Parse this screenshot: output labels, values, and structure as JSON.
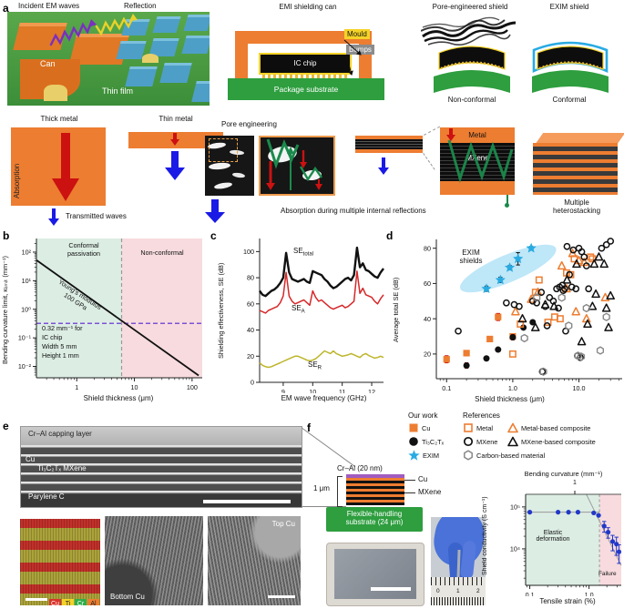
{
  "panels": {
    "a": "a",
    "b": "b",
    "c": "c",
    "d": "d",
    "e": "e",
    "f": "f"
  },
  "colors": {
    "metal_orange": "#ED7D31",
    "substrate_green": "#2E9E3F",
    "mould_yellow": "#F5D327",
    "bumps_gray": "#8C8C8C",
    "exim_cyan": "#29ABE2",
    "wave_red": "#CC1111",
    "wave_blue": "#1A1AE6",
    "absorption_green": "#1B8A4C",
    "capping_purple": "#A05CC0",
    "region_green": "#DCEDE4",
    "region_pink": "#F7DBDE"
  },
  "panel_a": {
    "scene": {
      "incident_label": "Incident EM waves",
      "reflection_label": "Reflection",
      "can_label": "Can",
      "thin_film_label": "Thin film"
    },
    "can_diagram": {
      "title": "EMI shielding can",
      "mould_label": "Mould",
      "bumps_label": "Bumps",
      "chip_label": "IC chip",
      "substrate_label": "Package substrate"
    },
    "pore_shield": {
      "title": "Pore-engineered shield",
      "caption": "Non-conformal"
    },
    "exim_shield": {
      "title": "EXIM shield",
      "caption": "Conformal"
    },
    "mechanisms": {
      "thick_metal_title": "Thick metal",
      "thin_metal_title": "Thin metal",
      "absorption_label": "Absorption",
      "transmitted_label": "Transmitted waves",
      "pore_engineering_title": "Pore engineering",
      "internal_reflection_label": "Absorption during multiple internal reflections",
      "metal_label": "Metal",
      "mxene_label": "MXene",
      "heterostacking_label_1": "Multiple",
      "heterostacking_label_2": "heterostacking"
    }
  },
  "legend": {
    "our_work_header": "Our work",
    "references_header": "References",
    "cu": "Cu",
    "mxene_ours": "Ti₃C₂Tₓ",
    "exim": "EXIM",
    "metal": "Metal",
    "mxene_ref": "MXene",
    "carbon": "Carbon-based material",
    "metal_composite": "Metal-based composite",
    "mxene_composite": "MXene-based composite"
  },
  "panel_e": {
    "sem_labels": {
      "capping": "Cr–Al capping layer",
      "cu": "Cu",
      "mxene": "Ti₃C₂Tₓ MXene",
      "substrate": "Parylene C"
    },
    "eds_elements": [
      {
        "symbol": "Cu"
      },
      {
        "symbol": "Ti"
      },
      {
        "symbol": "Cr"
      },
      {
        "symbol": "Al"
      }
    ],
    "tem1_label": "Bottom Cu",
    "tem2_label": "Top Cu"
  },
  "panel_f": {
    "stack": {
      "capping": "Cr–Al (20 nm)",
      "thickness": "1 μm",
      "cu": "Cu",
      "mxene": "MXene",
      "substrate_line1": "Flexible-handling",
      "substrate_line2": "substrate (24 μm)"
    },
    "ruler_numbers": [
      "0",
      "1",
      "2"
    ]
  },
  "chart_data": [
    {
      "id": "b",
      "type": "line",
      "log_x": true,
      "log_y": true,
      "xlim": [
        0.2,
        150
      ],
      "ylim": [
        0.004,
        300
      ],
      "x_ticks": [
        1,
        10,
        100
      ],
      "x_tick_labels": [
        "1",
        "10",
        "100"
      ],
      "y_ticks": [
        0.01,
        0.1,
        1,
        10,
        100
      ],
      "y_tick_labels": [
        "10⁻²",
        "10⁻¹",
        "10⁰",
        "10¹",
        "10²"
      ],
      "xlabel": "Shield thickness (μm)",
      "ylabel": "Bending curvature limit, κₗᵢₘᵢₜ (mm⁻¹)",
      "regions": [
        {
          "x0": 0.2,
          "x1": 6,
          "color": "#DCEDE4"
        },
        {
          "x0": 6,
          "x1": 150,
          "color": "#F7DBDE"
        }
      ],
      "boundary_x": 6,
      "region_left_label_1": "Conformal",
      "region_left_label_2": "passivation",
      "region_right_label": "Non-conformal",
      "line": {
        "points": [
          [
            0.2,
            52.5
          ],
          [
            130,
            0.0048
          ]
        ],
        "color": "#111111"
      },
      "line_label_1": "Young's modulus",
      "line_label_2": "100 GPa",
      "hline": {
        "y": 0.32,
        "color": "#7B52D6"
      },
      "note_lines": [
        "0.32 mm⁻¹ for",
        "IC chip",
        "Width 5 mm",
        "Height 1 mm"
      ]
    },
    {
      "id": "c",
      "type": "line",
      "x_start": 8.2,
      "x_step": 0.1,
      "xlim": [
        8.2,
        12.4
      ],
      "ylim": [
        0,
        110
      ],
      "x_ticks": [
        9,
        10,
        11,
        12
      ],
      "x_tick_labels": [
        "9",
        "10",
        "11",
        "12"
      ],
      "y_ticks": [
        0,
        20,
        40,
        60,
        80,
        100
      ],
      "y_tick_labels": [
        "0",
        "20",
        "40",
        "60",
        "80",
        "100"
      ],
      "xlabel": "EM wave frequency (GHz)",
      "ylabel": "Shielding effectiveness, SE (dB)",
      "series": [
        {
          "label_main": "SE",
          "label_sub": "total",
          "color": "#111111",
          "width": 2.4,
          "values": [
            70,
            67,
            66,
            68,
            70,
            71,
            73,
            76,
            80,
            99,
            84,
            79,
            78,
            77,
            78,
            79,
            77,
            76,
            85,
            84,
            83,
            82,
            79,
            77,
            74,
            72,
            73,
            75,
            77,
            79,
            80,
            78,
            82,
            103,
            88,
            91,
            86,
            85,
            83,
            81,
            80,
            84,
            87
          ]
        },
        {
          "label_main": "SE",
          "label_sub": "A",
          "color": "#D62728",
          "width": 1.5,
          "values": [
            55,
            54,
            53,
            55,
            56,
            57,
            58,
            61,
            66,
            84,
            66,
            62,
            60,
            61,
            62,
            63,
            61,
            59,
            70,
            65,
            62,
            63,
            61,
            59,
            57,
            56,
            57,
            58,
            59,
            57,
            58,
            60,
            62,
            85,
            68,
            72,
            67,
            66,
            65,
            62,
            60,
            64,
            67
          ]
        },
        {
          "label_main": "SE",
          "label_sub": "R",
          "color": "#BDB52A",
          "width": 1.5,
          "values": [
            15,
            13,
            12,
            11.5,
            12,
            13,
            14,
            15,
            16,
            17,
            18,
            19,
            20,
            20,
            19,
            18,
            17,
            16.5,
            17,
            18,
            20,
            22,
            24,
            23,
            22,
            24,
            22,
            21,
            20,
            20.5,
            21,
            22,
            21,
            20,
            19,
            21,
            22,
            20.5,
            19.5,
            18.5,
            19,
            20,
            19
          ]
        }
      ]
    },
    {
      "id": "d",
      "type": "scatter",
      "log_x": true,
      "xlim": [
        0.07,
        45
      ],
      "ylim": [
        6,
        85
      ],
      "x_ticks": [
        0.1,
        1,
        10
      ],
      "x_tick_labels": [
        "0.1",
        "1.0",
        "10.0"
      ],
      "y_ticks": [
        20,
        40,
        60,
        80
      ],
      "y_tick_labels": [
        "20",
        "40",
        "60",
        "80"
      ],
      "xlabel": "Shield thickness (μm)",
      "ylabel": "Average total SE (dB)",
      "highlight": {
        "label_1": "EXIM",
        "label_2": "shields",
        "color": "#A8DFF5",
        "cx": 0.85,
        "cy": 68.5,
        "rx": 57,
        "ry": 15,
        "angle": -23
      },
      "series": [
        {
          "name": "Cu (our work)",
          "marker": "square",
          "fill": "#ED7D31",
          "open": false,
          "err_color": "#C00000",
          "points": [
            [
              0.1,
              17,
              2
            ],
            [
              0.2,
              20.5,
              1.5
            ],
            [
              0.45,
              28.5,
              1.2
            ],
            [
              0.6,
              41,
              2
            ],
            [
              1.0,
              30,
              1.5
            ]
          ]
        },
        {
          "name": "Ti₃C₂Tₓ (our work)",
          "marker": "circle",
          "fill": "#111111",
          "open": false,
          "err_color": "#C00000",
          "points": [
            [
              0.2,
              13.5,
              1.5
            ],
            [
              0.4,
              17.5,
              1
            ],
            [
              0.6,
              22.5,
              1
            ],
            [
              1.0,
              29.5,
              1.5
            ],
            [
              1.45,
              35,
              1
            ],
            [
              2.0,
              38,
              1
            ]
          ]
        },
        {
          "name": "EXIM (our work)",
          "marker": "star",
          "fill": "#29ABE2",
          "open": false,
          "err_color": "#111111",
          "points": [
            [
              0.4,
              57,
              1.5
            ],
            [
              0.65,
              62,
              1.5
            ],
            [
              0.9,
              69,
              1.2
            ],
            [
              1.2,
              74,
              3.5
            ],
            [
              1.9,
              80,
              1
            ]
          ]
        },
        {
          "name": "Metal (references)",
          "marker": "square",
          "fill": "#ED7D31",
          "open": true,
          "points": [
            [
              1.0,
              20
            ],
            [
              1.3,
              37
            ],
            [
              2.2,
              55
            ],
            [
              2.5,
              62
            ],
            [
              3.4,
              38
            ],
            [
              4.3,
              41
            ],
            [
              5.2,
              40
            ],
            [
              6.5,
              66
            ],
            [
              7.5,
              65
            ],
            [
              8.5,
              74
            ],
            [
              15,
              75
            ],
            [
              16,
              74
            ]
          ]
        },
        {
          "name": "Metal-based composite",
          "marker": "triangle",
          "fill": "#ED7D31",
          "open": true,
          "points": [
            [
              1.1,
              44
            ],
            [
              1.9,
              51
            ],
            [
              2.4,
              55
            ],
            [
              5.5,
              70
            ],
            [
              6.5,
              57
            ],
            [
              8,
              77
            ],
            [
              10,
              73
            ],
            [
              12,
              72
            ],
            [
              9,
              44
            ],
            [
              13,
              40
            ],
            [
              25,
              52
            ]
          ]
        },
        {
          "name": "MXene (references)",
          "marker": "circle",
          "fill": "#111111",
          "open": true,
          "points": [
            [
              0.15,
              33
            ],
            [
              0.8,
              49
            ],
            [
              1.05,
              48
            ],
            [
              1.25,
              47
            ],
            [
              2.0,
              50
            ],
            [
              2.3,
              49
            ],
            [
              2.7,
              55
            ],
            [
              3.1,
              47
            ],
            [
              3.6,
              52
            ],
            [
              4.1,
              50
            ],
            [
              4.6,
              57
            ],
            [
              5.1,
              58
            ],
            [
              5.6,
              59
            ],
            [
              6.1,
              57
            ],
            [
              6.6,
              81
            ],
            [
              7.2,
              65
            ],
            [
              8.2,
              79
            ],
            [
              9,
              57
            ],
            [
              10,
              80
            ],
            [
              11,
              78
            ],
            [
              12,
              75
            ],
            [
              13,
              70
            ],
            [
              3.3,
              36
            ],
            [
              6.3,
              33
            ],
            [
              9.5,
              19
            ],
            [
              10.5,
              18
            ],
            [
              22,
              80
            ],
            [
              26,
              82
            ],
            [
              30,
              84
            ],
            [
              2.8,
              10
            ],
            [
              5.8,
              56
            ],
            [
              4.9,
              46
            ],
            [
              7.8,
              58
            ],
            [
              14,
              57
            ]
          ]
        },
        {
          "name": "MXene-based composite",
          "marker": "triangle",
          "fill": "#111111",
          "open": true,
          "points": [
            [
              1.4,
              40
            ],
            [
              2.2,
              35
            ],
            [
              3.1,
              48
            ],
            [
              4.2,
              47
            ],
            [
              6.6,
              62
            ],
            [
              9.2,
              71
            ],
            [
              11,
              27
            ],
            [
              13.5,
              37
            ],
            [
              16,
              47
            ],
            [
              17,
              71
            ],
            [
              18,
              54
            ],
            [
              20,
              75
            ],
            [
              24,
              71
            ],
            [
              26,
              46
            ],
            [
              28,
              35
            ],
            [
              30,
              53
            ]
          ]
        },
        {
          "name": "Carbon-based material",
          "marker": "hexagon",
          "fill": "#888888",
          "open": true,
          "points": [
            [
              1.5,
              29
            ],
            [
              2.3,
              52
            ],
            [
              2.9,
              10
            ],
            [
              5.5,
              52
            ],
            [
              7,
              36
            ],
            [
              9.7,
              19
            ],
            [
              10.8,
              18.5
            ],
            [
              13,
              46
            ],
            [
              21,
              22
            ],
            [
              26,
              41
            ]
          ]
        }
      ]
    },
    {
      "id": "f",
      "type": "scatter",
      "log_x": true,
      "log_y": true,
      "xlim": [
        0.085,
        3.5
      ],
      "ylim": [
        1350,
        200000
      ],
      "x_ticks": [
        0.1,
        1.0
      ],
      "x_tick_labels": [
        "0.1",
        "1.0"
      ],
      "y_ticks": [
        10000,
        100000
      ],
      "y_tick_labels": [
        "10⁴",
        "10⁵"
      ],
      "xlabel": "Tensile strain (%)",
      "ylabel": "Shield conductivity (S cm⁻¹)",
      "top_axis": {
        "label": "Bending curvature (mm⁻¹)",
        "tick_value": 0.575,
        "tick_label": "1"
      },
      "regions": [
        {
          "x0": 0.085,
          "x1": 1.5,
          "color": "#DCEDE4"
        },
        {
          "x0": 1.5,
          "x1": 3.5,
          "color": "#F7DBDE"
        }
      ],
      "region_labels": {
        "elastic_1": "Elastic",
        "elastic_2": "deformation",
        "failure": "Failure"
      },
      "boundary_x": 1.5,
      "hline": {
        "y": 75000,
        "x0": 0.085,
        "x1": 1.5,
        "color": "#999999"
      },
      "guide_line": {
        "points": [
          [
            0.9,
            200000
          ],
          [
            3.5,
            4000
          ]
        ],
        "color": "#999999"
      },
      "series": [
        {
          "name": "EXIM shield conductivity",
          "marker": "circle",
          "fill": "#2238C9",
          "open": false,
          "err_color": "#2238C9",
          "points": [
            [
              0.1,
              75000
            ],
            [
              0.3,
              75000
            ],
            [
              0.45,
              75000
            ],
            [
              0.65,
              75000
            ],
            [
              1.2,
              72000
            ],
            [
              1.45,
              63000
            ],
            [
              1.8,
              35000,
              10000
            ],
            [
              2.1,
              25000,
              7000
            ],
            [
              2.5,
              15000,
              6000
            ],
            [
              2.9,
              13000,
              6000
            ],
            [
              3.2,
              8500,
              4000
            ]
          ]
        }
      ]
    }
  ]
}
